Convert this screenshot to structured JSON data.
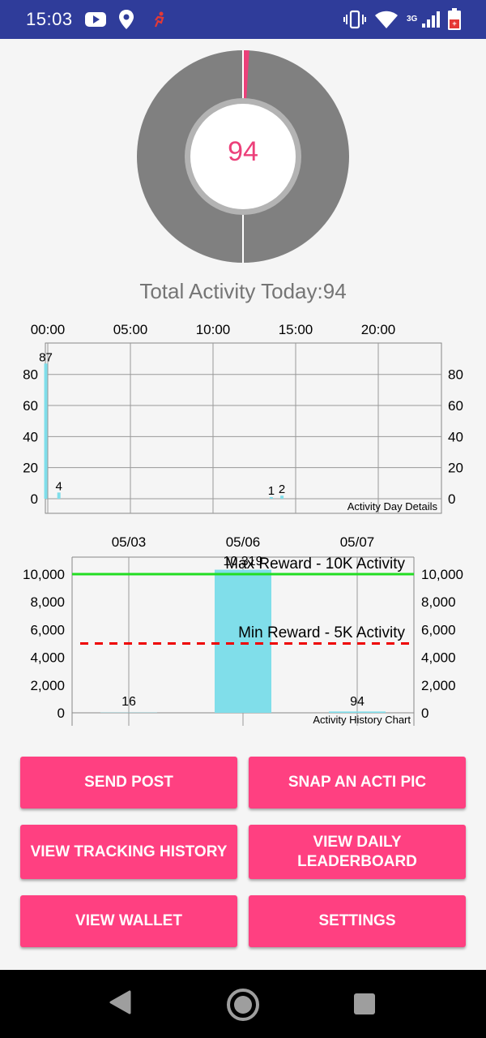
{
  "status_bar": {
    "time": "15:03",
    "network": "3G",
    "bg_color": "#2F3C9A",
    "left_icons": [
      "youtube-icon",
      "location-pin-icon",
      "activity-tracker-icon"
    ],
    "right_icons": [
      "vibrate-icon",
      "wifi-icon",
      "signal-icon",
      "battery-icon"
    ]
  },
  "gauge": {
    "value": "94",
    "fraction": 0.0094,
    "fill_color": "#EC407A",
    "track_color": "#808080"
  },
  "total_label": "Total Activity Today:94",
  "day_chart": {
    "description": "Activity Day Details",
    "x_ticks": [
      "00:00",
      "05:00",
      "10:00",
      "15:00",
      "20:00"
    ],
    "y_ticks": [
      "0",
      "20",
      "40",
      "60",
      "80"
    ],
    "bar_labels": [
      "87",
      "4",
      "1",
      "2"
    ]
  },
  "history_chart": {
    "description": "Activity History Chart",
    "x_ticks": [
      "05/03",
      "05/06",
      "05/07"
    ],
    "y_ticks": [
      "0",
      "2,000",
      "4,000",
      "6,000",
      "8,000",
      "10,000"
    ],
    "bar_labels": [
      "16",
      "10,319",
      "94"
    ],
    "max_line_label": "Max Reward - 10K Activity",
    "min_line_label": "Min Reward - 5K Activity"
  },
  "chart_data": [
    {
      "type": "bar",
      "title": "Activity Day Details",
      "x": [
        "00:00",
        "00:30",
        "13:30",
        "14:00"
      ],
      "values": [
        87,
        4,
        1,
        2
      ],
      "x_ticks": [
        "00:00",
        "05:00",
        "10:00",
        "15:00",
        "20:00"
      ],
      "ylim": [
        0,
        95
      ],
      "y_ticks": [
        0,
        20,
        40,
        60,
        80
      ],
      "bar_color": "#80DEEA",
      "grid": true
    },
    {
      "type": "bar",
      "title": "Activity History Chart",
      "categories": [
        "05/03",
        "05/06",
        "05/07"
      ],
      "values": [
        16,
        10319,
        94
      ],
      "ylim": [
        0,
        10500
      ],
      "y_ticks": [
        0,
        2000,
        4000,
        6000,
        8000,
        10000
      ],
      "bar_color": "#80DEEA",
      "limit_lines": [
        {
          "label": "Max Reward - 10K Activity",
          "value": 10000,
          "color": "#22DD22",
          "style": "solid"
        },
        {
          "label": "Min Reward - 5K Activity",
          "value": 5000,
          "color": "#EE0000",
          "style": "dashed"
        }
      ],
      "grid": true
    }
  ],
  "buttons": {
    "send_post": "SEND POST",
    "snap_pic": "SNAP AN ACTI PIC",
    "view_tracking_history": "VIEW TRACKING HISTORY",
    "view_daily_leaderboard": "VIEW DAILY LEADERBOARD",
    "view_wallet": "VIEW WALLET",
    "settings": "SETTINGS"
  }
}
